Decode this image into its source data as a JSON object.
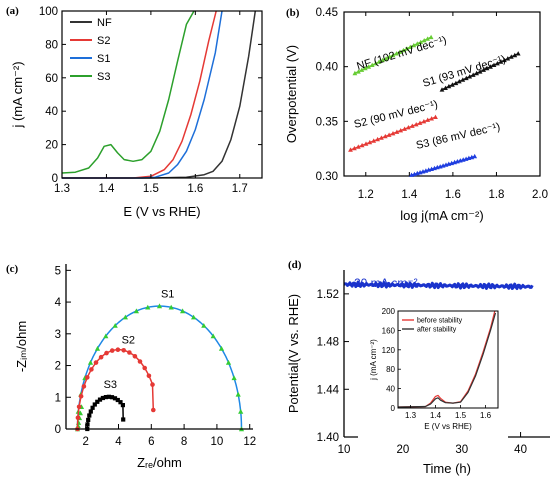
{
  "panel_labels": {
    "a": "(a)",
    "b": "(b)",
    "c": "(c)",
    "d": "(d)"
  },
  "chart_data": [
    {
      "panel": "a",
      "type": "line",
      "xlabel": "E (V vs RHE)",
      "ylabel": "j (mA cm⁻²)",
      "xlim": [
        1.3,
        1.75
      ],
      "ylim": [
        0,
        100
      ],
      "xticks": [
        "1.3",
        "1.4",
        "1.5",
        "1.6",
        "1.7"
      ],
      "yticks": [
        "0",
        "20",
        "40",
        "60",
        "80",
        "100"
      ],
      "legend_position": "top-left",
      "series": [
        {
          "name": "NF",
          "color": "#333333",
          "x": [
            1.3,
            1.5,
            1.58,
            1.62,
            1.64,
            1.66,
            1.68,
            1.7,
            1.72,
            1.735
          ],
          "y": [
            0,
            0,
            0.5,
            2,
            4,
            10,
            23,
            43,
            73,
            100
          ]
        },
        {
          "name": "S2",
          "color": "#e53935",
          "x": [
            1.3,
            1.46,
            1.5,
            1.53,
            1.55,
            1.57,
            1.59,
            1.61,
            1.63,
            1.647
          ],
          "y": [
            0,
            0,
            1,
            5,
            11,
            22,
            38,
            58,
            82,
            100
          ]
        },
        {
          "name": "S1",
          "color": "#1e6fd9",
          "x": [
            1.3,
            1.48,
            1.51,
            1.54,
            1.56,
            1.58,
            1.6,
            1.62,
            1.645,
            1.66
          ],
          "y": [
            0,
            0,
            0.5,
            3,
            8,
            16,
            29,
            47,
            75,
            100
          ]
        },
        {
          "name": "S3",
          "color": "#2ca02c",
          "x": [
            1.3,
            1.33,
            1.36,
            1.38,
            1.395,
            1.41,
            1.425,
            1.44,
            1.46,
            1.48,
            1.5,
            1.52,
            1.54,
            1.56,
            1.58,
            1.597
          ],
          "y": [
            3,
            3.5,
            6,
            12,
            19,
            20,
            15,
            11,
            10,
            11,
            16,
            28,
            47,
            70,
            92,
            100
          ]
        }
      ]
    },
    {
      "panel": "b",
      "type": "scatter",
      "xlabel": "log j(mA cm⁻²)",
      "ylabel": "Overpotential (V)",
      "xlim": [
        1.1,
        2.0
      ],
      "ylim": [
        0.3,
        0.45
      ],
      "xticks": [
        "1.2",
        "1.4",
        "1.6",
        "1.8",
        "2.0"
      ],
      "yticks": [
        "0.30",
        "0.35",
        "0.40",
        "0.45"
      ],
      "series": [
        {
          "label": "NF (102 mV dec⁻¹)",
          "color": "#66cc33",
          "x": [
            1.15,
            1.5
          ],
          "y": [
            0.394,
            0.427
          ]
        },
        {
          "label": "S1 (93 mV dec⁻¹)",
          "color": "#111111",
          "x": [
            1.55,
            1.9
          ],
          "y": [
            0.379,
            0.412
          ]
        },
        {
          "label": "S2 (90 mV dec⁻¹)",
          "color": "#e53935",
          "x": [
            1.13,
            1.52
          ],
          "y": [
            0.324,
            0.354
          ]
        },
        {
          "label": "S3 (86 mV dec⁻¹)",
          "color": "#1f3ee0",
          "x": [
            1.41,
            1.7
          ],
          "y": [
            0.301,
            0.318
          ]
        }
      ]
    },
    {
      "panel": "c",
      "type": "line",
      "xlabel": "Zᵣₑ/ohm",
      "ylabel": "-Zᵢₘ/ohm",
      "xlim": [
        0.8,
        12.2
      ],
      "ylim": [
        0,
        5.2
      ],
      "xticks": [
        "2",
        "4",
        "6",
        "8",
        "10",
        "12"
      ],
      "yticks": [
        "0",
        "1",
        "2",
        "3",
        "4",
        "5"
      ],
      "series": [
        {
          "name": "S1",
          "color": "#1e88e5",
          "marker_color": "#33cc33",
          "center": 6.5,
          "radius": 5.0,
          "yscale": 0.775
        },
        {
          "name": "S2",
          "color": "#e53935",
          "marker_color": "#e53935",
          "center": 4.0,
          "radius": 2.5,
          "yscale": 1.0,
          "end_angle_deg": 146
        },
        {
          "name": "S3",
          "color": "#000000",
          "marker_color": "#000000",
          "center": 3.4,
          "radius": 1.3,
          "yscale": 0.78,
          "end_angle_deg": 132
        }
      ]
    },
    {
      "panel": "d",
      "type": "line",
      "xlabel": "Time (h)",
      "ylabel": "Potential(V vs. RHE)",
      "xlim": [
        10,
        45
      ],
      "ylim": [
        1.4,
        1.54
      ],
      "xticks": [
        "10",
        "20",
        "30",
        "40"
      ],
      "yticks": [
        "1.40",
        "1.44",
        "1.48",
        "1.52"
      ],
      "annotation": "20 mA cm⁻²",
      "series": [
        {
          "name": "20 mA cm⁻²",
          "color": "#1a33cc",
          "x": [
            10,
            20,
            30,
            42
          ],
          "y": [
            1.528,
            1.527,
            1.527,
            1.526
          ]
        }
      ],
      "inset": {
        "type": "line",
        "xlabel": "E (V vs RHE)",
        "ylabel": "j (mA cm⁻²)",
        "xlim": [
          1.25,
          1.65
        ],
        "ylim": [
          0,
          200
        ],
        "xticks": [
          "1.3",
          "1.4",
          "1.5",
          "1.6"
        ],
        "yticks": [
          "0",
          "40",
          "80",
          "120",
          "160",
          "200"
        ],
        "series": [
          {
            "name": "before stability",
            "color": "#e53935",
            "x": [
              1.25,
              1.36,
              1.38,
              1.4,
              1.41,
              1.42,
              1.44,
              1.47,
              1.5,
              1.53,
              1.56,
              1.59,
              1.62,
              1.637
            ],
            "y": [
              2,
              3,
              10,
              24,
              26,
              20,
              12,
              10,
              13,
              35,
              70,
              115,
              165,
              200
            ]
          },
          {
            "name": "after  stability",
            "color": "#333333",
            "x": [
              1.25,
              1.36,
              1.38,
              1.4,
              1.41,
              1.42,
              1.44,
              1.47,
              1.5,
              1.53,
              1.56,
              1.59,
              1.62,
              1.64
            ],
            "y": [
              2,
              3,
              8,
              19,
              21,
              16,
              11,
              10,
              12,
              32,
              66,
              110,
              160,
              196
            ]
          }
        ]
      }
    }
  ]
}
